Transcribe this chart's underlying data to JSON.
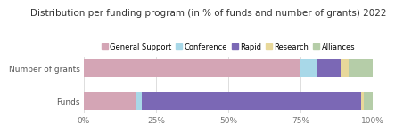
{
  "title": "Distribution per funding program (in % of funds and number of grants) 2022",
  "categories": [
    "Funds",
    "Number of grants"
  ],
  "legend_labels": [
    "General Support",
    "Conference",
    "Rapid",
    "Research",
    "Alliances"
  ],
  "colors": [
    "#d4a5b5",
    "#a8d8e8",
    "#7b68b5",
    "#e8d89a",
    "#b5cda8"
  ],
  "values": [
    [
      75.0,
      5.5,
      8.5,
      2.5,
      8.5
    ],
    [
      18.0,
      2.0,
      76.0,
      1.0,
      3.0
    ]
  ],
  "xlim": [
    0,
    100
  ],
  "xtick_labels": [
    "0%",
    "25%",
    "50%",
    "75%",
    "100%"
  ],
  "xtick_values": [
    0,
    25,
    50,
    75,
    100
  ],
  "title_fontsize": 7.5,
  "label_fontsize": 6.5,
  "legend_fontsize": 6.0,
  "bar_height": 0.55,
  "background_color": "#ffffff",
  "grid_color": "#d8d8d8"
}
